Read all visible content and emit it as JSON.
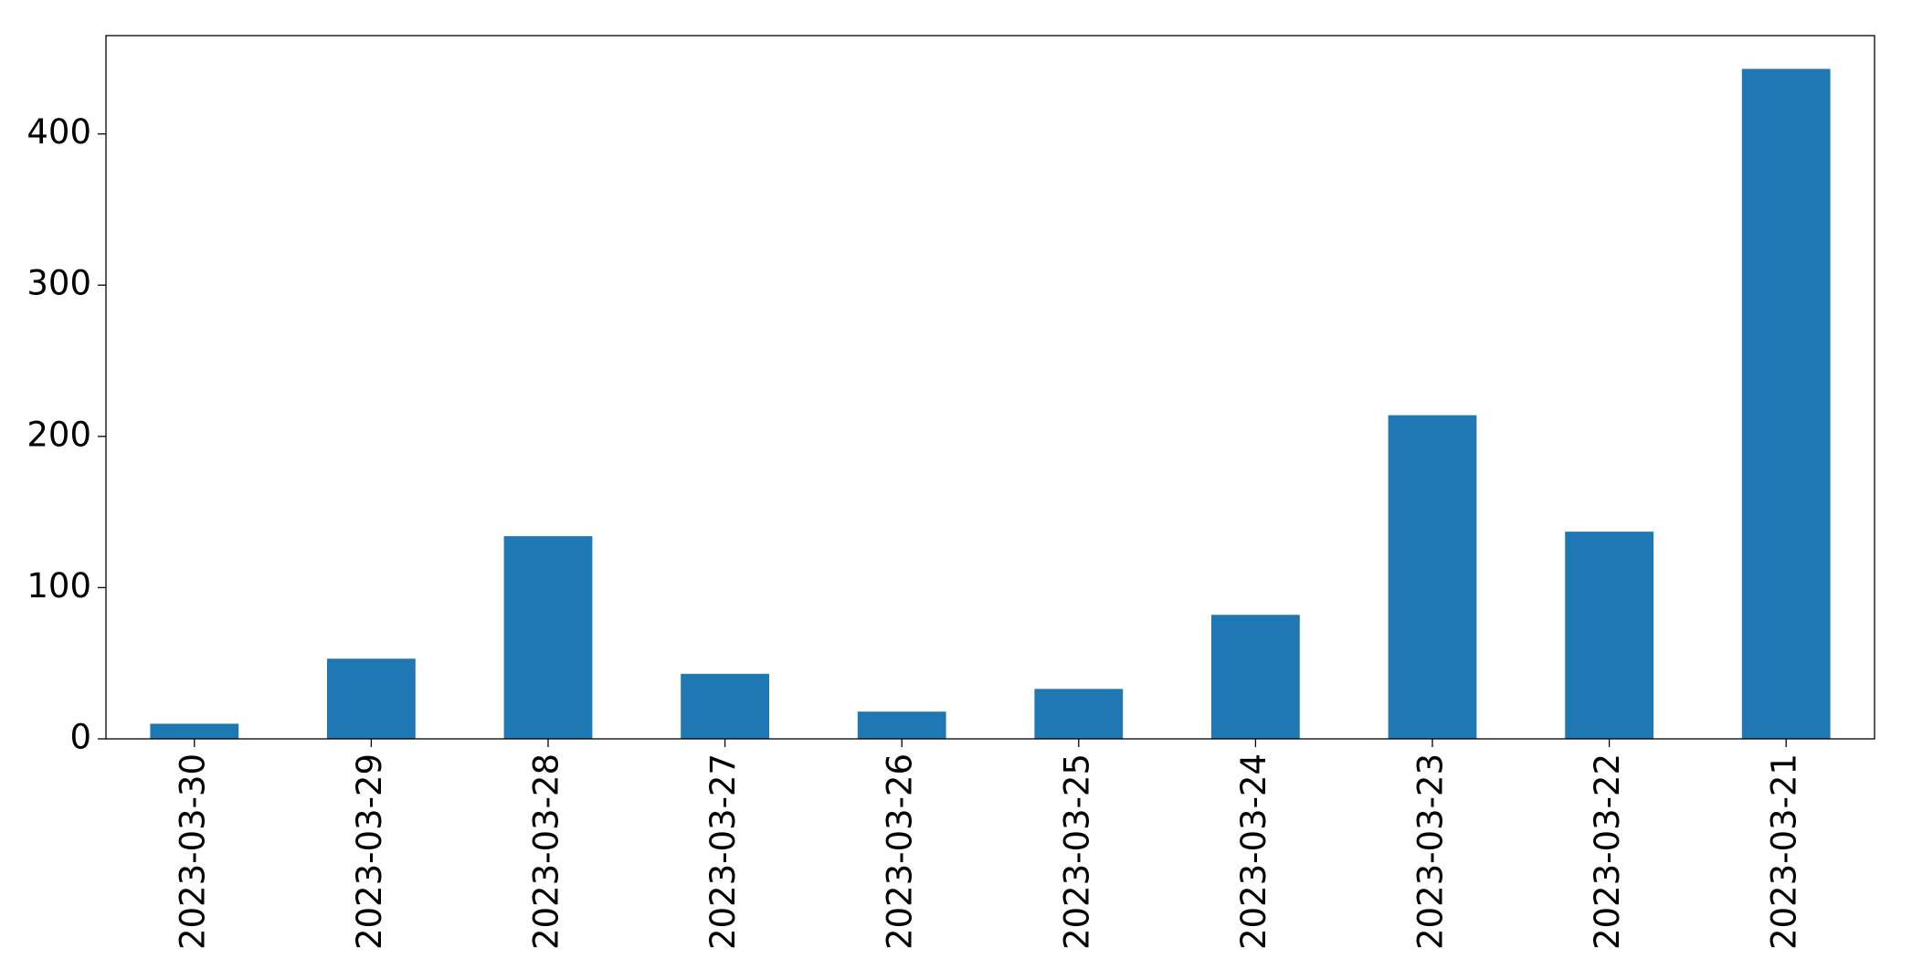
{
  "chart_data": {
    "type": "bar",
    "categories": [
      "2023-03-30",
      "2023-03-29",
      "2023-03-28",
      "2023-03-27",
      "2023-03-26",
      "2023-03-25",
      "2023-03-24",
      "2023-03-23",
      "2023-03-22",
      "2023-03-21"
    ],
    "values": [
      10,
      53,
      134,
      43,
      18,
      33,
      82,
      214,
      137,
      443
    ],
    "color": "#1f77b4",
    "ylim": [
      0,
      465
    ],
    "yticks": [
      0,
      100,
      200,
      300,
      400
    ],
    "grid": false
  }
}
